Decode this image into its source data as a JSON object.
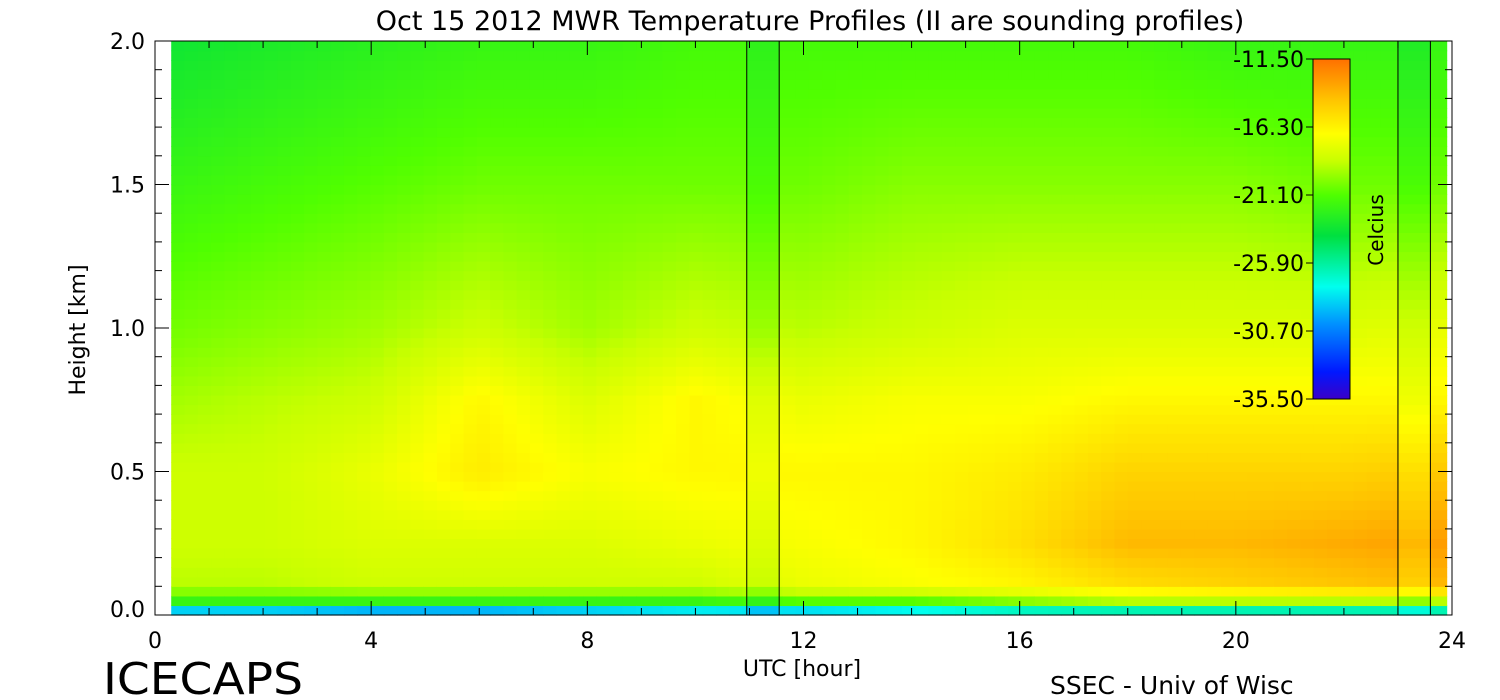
{
  "chart_data": {
    "type": "heatmap",
    "title": "Oct 15 2012 MWR Temperature Profiles (II are sounding profiles)",
    "xlabel": "UTC [hour]",
    "ylabel": "Height [km]",
    "xlim": [
      0,
      24
    ],
    "ylim": [
      0,
      2
    ],
    "x_ticks": [
      "0",
      "4",
      "8",
      "12",
      "16",
      "20",
      "24"
    ],
    "y_ticks": [
      "0.0",
      "0.5",
      "1.0",
      "1.5",
      "2.0"
    ],
    "colorbar": {
      "label": "Celcius",
      "tick_labels": [
        "-11.50",
        "-16.30",
        "-21.10",
        "-25.90",
        "-30.70",
        "-35.50"
      ],
      "range": [
        -35.5,
        -11.5
      ],
      "placement": "top-right"
    },
    "sounding_profiles_hours": [
      [
        10.95,
        11.55
      ],
      [
        23.0,
        23.6
      ]
    ],
    "data_coverage_hours": [
      0.3,
      23.9
    ],
    "temperature_estimates": {
      "heights_km": [
        0.0,
        0.05,
        0.1,
        0.25,
        0.5,
        0.75,
        1.0,
        1.5,
        2.0
      ],
      "hours": [
        0,
        2,
        4,
        6,
        8,
        10,
        12,
        14,
        16,
        18,
        20,
        22,
        24
      ],
      "values_celsius": [
        [
          -32,
          -32,
          -33,
          -33,
          -32,
          -31,
          -32,
          -31,
          -30,
          -30,
          -30,
          -30,
          -30
        ],
        [
          -22,
          -22,
          -22,
          -22,
          -22,
          -22,
          -21,
          -21,
          -20,
          -19,
          -19,
          -19,
          -19
        ],
        [
          -19,
          -19,
          -18.5,
          -18.5,
          -18.5,
          -18.5,
          -17.5,
          -17,
          -16.5,
          -15.5,
          -15,
          -14.5,
          -14
        ],
        [
          -18.5,
          -18.5,
          -18,
          -18,
          -18,
          -17.5,
          -17,
          -16.5,
          -15.5,
          -14,
          -14,
          -13.5,
          -13
        ],
        [
          -18.5,
          -18.5,
          -17.5,
          -16,
          -17,
          -16.5,
          -16.5,
          -16.5,
          -16,
          -15,
          -15,
          -15,
          -14.5
        ],
        [
          -19.5,
          -19,
          -18.5,
          -16.5,
          -18,
          -16.5,
          -17.5,
          -17,
          -17,
          -16.5,
          -16.5,
          -16.5,
          -16.5
        ],
        [
          -20.5,
          -20,
          -19.5,
          -18.5,
          -19.5,
          -18.5,
          -19,
          -18.5,
          -18,
          -18,
          -18,
          -18,
          -17.5
        ],
        [
          -22,
          -21.5,
          -21,
          -20.5,
          -20.5,
          -20.5,
          -20.5,
          -20,
          -20,
          -20,
          -20,
          -20.5,
          -20.5
        ],
        [
          -23.5,
          -23,
          -22.5,
          -22,
          -22,
          -21.5,
          -21.5,
          -21.5,
          -21.5,
          -21.5,
          -22,
          -22,
          -22
        ]
      ]
    }
  },
  "footer": {
    "left": "ICECAPS",
    "right": "SSEC - Univ of Wisc"
  }
}
